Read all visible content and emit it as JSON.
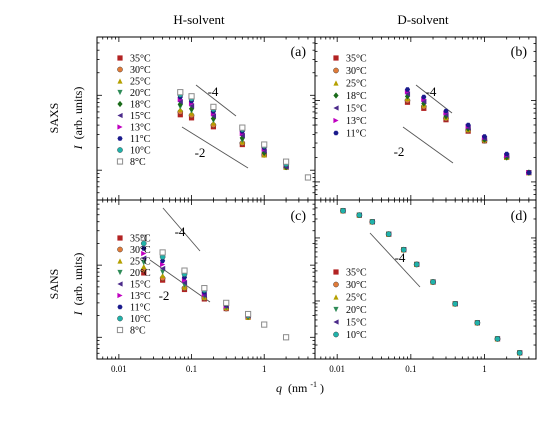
{
  "figure": {
    "col_titles": [
      "H-solvent",
      "D-solvent"
    ],
    "row_labels": [
      "SAXS",
      "SANS"
    ],
    "ylabel_main": "I",
    "ylabel_unit": "(arb. units)",
    "xlabel_main": "q",
    "xlabel_unit": "(nm",
    "xlabel_exp": "-1",
    "xlabel_close": ")"
  },
  "chart_data": [
    {
      "type": "scatter",
      "panel": "(a)",
      "xscale": "log",
      "yscale": "log",
      "xlim": [
        0.005,
        5
      ],
      "x_ticks": [],
      "slope_labels": [
        "-4",
        "-2"
      ],
      "series": [
        {
          "name": "35°C",
          "color": "#b22222",
          "marker": "square",
          "x": [
            0.07,
            0.1,
            0.2,
            0.5,
            1,
            2,
            4
          ],
          "y": [
            0.55,
            0.5,
            0.38,
            0.22,
            0.16,
            0.11,
            0.08
          ]
        },
        {
          "name": "30°C",
          "color": "#e07b39",
          "marker": "circle",
          "x": [
            0.07,
            0.1,
            0.2,
            0.5,
            1,
            2,
            4
          ],
          "y": [
            0.6,
            0.54,
            0.4,
            0.23,
            0.16,
            0.11,
            0.08
          ]
        },
        {
          "name": "25°C",
          "color": "#b5a000",
          "marker": "triangle-up",
          "x": [
            0.07,
            0.1,
            0.2,
            0.5,
            1,
            2,
            4
          ],
          "y": [
            0.65,
            0.58,
            0.43,
            0.24,
            0.16,
            0.11,
            0.08
          ]
        },
        {
          "name": "20°C",
          "color": "#2e8b57",
          "marker": "triangle-down",
          "x": [
            0.07,
            0.1,
            0.2,
            0.5,
            1,
            2,
            4
          ],
          "y": [
            0.7,
            0.62,
            0.46,
            0.25,
            0.17,
            0.11,
            0.08
          ]
        },
        {
          "name": "18°C",
          "color": "#1a6b1a",
          "marker": "diamond",
          "x": [
            0.07,
            0.1,
            0.2,
            0.5,
            1,
            2,
            4
          ],
          "y": [
            0.76,
            0.66,
            0.49,
            0.27,
            0.17,
            0.11,
            0.08
          ]
        },
        {
          "name": "15°C",
          "color": "#4b2a8a",
          "marker": "triangle-left",
          "x": [
            0.07,
            0.1,
            0.2,
            0.5,
            1,
            2,
            4
          ],
          "y": [
            0.82,
            0.72,
            0.53,
            0.29,
            0.18,
            0.11,
            0.08
          ]
        },
        {
          "name": "13°C",
          "color": "#c000c0",
          "marker": "triangle-right",
          "x": [
            0.07,
            0.1,
            0.2,
            0.5,
            1,
            2,
            4
          ],
          "y": [
            0.88,
            0.78,
            0.57,
            0.31,
            0.19,
            0.12,
            0.08
          ]
        },
        {
          "name": "11°C",
          "color": "#1a1a8c",
          "marker": "hexagon",
          "x": [
            0.07,
            0.1,
            0.2,
            0.5,
            1,
            2,
            4
          ],
          "y": [
            0.95,
            0.84,
            0.61,
            0.33,
            0.2,
            0.12,
            0.08
          ]
        },
        {
          "name": "10°C",
          "color": "#20b2aa",
          "marker": "circle",
          "x": [
            0.07,
            0.1,
            0.2,
            0.5,
            1,
            2,
            4
          ],
          "y": [
            1.02,
            0.9,
            0.65,
            0.35,
            0.21,
            0.12,
            0.08
          ]
        },
        {
          "name": "8°C",
          "color": "#8c8c8c",
          "marker": "square-open",
          "x": [
            0.07,
            0.1,
            0.2,
            0.5,
            1,
            2,
            4
          ],
          "y": [
            1.1,
            0.97,
            0.7,
            0.37,
            0.22,
            0.13,
            0.08
          ]
        }
      ]
    },
    {
      "type": "scatter",
      "panel": "(b)",
      "xscale": "log",
      "yscale": "log",
      "xlim": [
        0.005,
        5
      ],
      "x_ticks": [],
      "slope_labels": [
        "-4",
        "-2"
      ],
      "series": [
        {
          "name": "35°C",
          "color": "#b22222",
          "marker": "square",
          "x": [
            0.09,
            0.15,
            0.3,
            0.6,
            1,
            2,
            4
          ],
          "y": [
            0.95,
            0.8,
            0.58,
            0.42,
            0.32,
            0.2,
            0.13
          ]
        },
        {
          "name": "30°C",
          "color": "#e07b39",
          "marker": "circle",
          "x": [
            0.09,
            0.15,
            0.3,
            0.6,
            1,
            2,
            4
          ],
          "y": [
            1.0,
            0.84,
            0.6,
            0.43,
            0.32,
            0.2,
            0.13
          ]
        },
        {
          "name": "25°C",
          "color": "#b5a000",
          "marker": "triangle-up",
          "x": [
            0.09,
            0.15,
            0.3,
            0.6,
            1,
            2,
            4
          ],
          "y": [
            1.06,
            0.88,
            0.62,
            0.44,
            0.33,
            0.2,
            0.13
          ]
        },
        {
          "name": "18°C",
          "color": "#1a6b1a",
          "marker": "diamond",
          "x": [
            0.09,
            0.15,
            0.3,
            0.6,
            1,
            2,
            4
          ],
          "y": [
            1.12,
            0.92,
            0.64,
            0.45,
            0.33,
            0.2,
            0.13
          ]
        },
        {
          "name": "15°C",
          "color": "#4b2a8a",
          "marker": "triangle-left",
          "x": [
            0.09,
            0.15,
            0.3,
            0.6,
            1,
            2,
            4
          ],
          "y": [
            1.2,
            0.97,
            0.67,
            0.46,
            0.34,
            0.21,
            0.13
          ]
        },
        {
          "name": "13°C",
          "color": "#c000c0",
          "marker": "triangle-right",
          "x": [
            0.09,
            0.15,
            0.3,
            0.6,
            1,
            2,
            4
          ],
          "y": [
            1.28,
            1.03,
            0.7,
            0.48,
            0.35,
            0.21,
            0.13
          ]
        },
        {
          "name": "11°C",
          "color": "#1a1a8c",
          "marker": "hexagon",
          "x": [
            0.09,
            0.15,
            0.3,
            0.6,
            1,
            2,
            4
          ],
          "y": [
            1.36,
            1.1,
            0.74,
            0.5,
            0.36,
            0.22,
            0.13
          ]
        }
      ]
    },
    {
      "type": "scatter",
      "panel": "(c)",
      "xscale": "log",
      "yscale": "log",
      "xlim": [
        0.005,
        5
      ],
      "x_ticks": [
        "0.01",
        "0.1",
        "1"
      ],
      "slope_labels": [
        "-4",
        "-2"
      ],
      "series": [
        {
          "name": "35°C",
          "color": "#b22222",
          "marker": "square",
          "x": [
            0.022,
            0.04,
            0.08,
            0.15,
            0.3,
            0.6,
            1,
            2
          ],
          "y": [
            0.78,
            0.62,
            0.46,
            0.34,
            0.25,
            0.19,
            0.15,
            0.1
          ]
        },
        {
          "name": "30°C",
          "color": "#e07b39",
          "marker": "circle",
          "x": [
            0.022,
            0.04,
            0.08,
            0.15,
            0.3,
            0.6,
            1,
            2
          ],
          "y": [
            0.86,
            0.66,
            0.48,
            0.35,
            0.25,
            0.19,
            0.15,
            0.1
          ]
        },
        {
          "name": "25°C",
          "color": "#b5a000",
          "marker": "triangle-up",
          "x": [
            0.022,
            0.04,
            0.08,
            0.15,
            0.3,
            0.6,
            1,
            2
          ],
          "y": [
            0.96,
            0.72,
            0.5,
            0.36,
            0.26,
            0.19,
            0.15,
            0.1
          ]
        },
        {
          "name": "20°C",
          "color": "#2e8b57",
          "marker": "triangle-down",
          "x": [
            0.022,
            0.04,
            0.08,
            0.15,
            0.3,
            0.6,
            1,
            2
          ],
          "y": [
            1.08,
            0.8,
            0.53,
            0.37,
            0.26,
            0.19,
            0.15,
            0.1
          ]
        },
        {
          "name": "15°C",
          "color": "#4b2a8a",
          "marker": "triangle-left",
          "x": [
            0.022,
            0.04,
            0.08,
            0.15,
            0.3,
            0.6,
            1,
            2
          ],
          "y": [
            1.25,
            0.9,
            0.57,
            0.38,
            0.27,
            0.2,
            0.15,
            0.1
          ]
        },
        {
          "name": "13°C",
          "color": "#c000c0",
          "marker": "triangle-right",
          "x": [
            0.022,
            0.04,
            0.08,
            0.15,
            0.3,
            0.6,
            1,
            2
          ],
          "y": [
            1.45,
            1.02,
            0.62,
            0.4,
            0.27,
            0.2,
            0.15,
            0.1
          ]
        },
        {
          "name": "11°C",
          "color": "#1a1a8c",
          "marker": "hexagon",
          "x": [
            0.022,
            0.04,
            0.08,
            0.15,
            0.3,
            0.6,
            1,
            2
          ],
          "y": [
            1.7,
            1.15,
            0.68,
            0.42,
            0.28,
            0.2,
            0.15,
            0.1
          ]
        },
        {
          "name": "10°C",
          "color": "#20b2aa",
          "marker": "circle",
          "x": [
            0.022,
            0.04,
            0.08,
            0.15,
            0.3,
            0.6,
            1,
            2
          ],
          "y": [
            2.0,
            1.3,
            0.75,
            0.45,
            0.29,
            0.2,
            0.15,
            0.1
          ]
        },
        {
          "name": "8°C",
          "color": "#8c8c8c",
          "marker": "square-open",
          "x": [
            0.022,
            0.04,
            0.08,
            0.15,
            0.3,
            0.6,
            1,
            2
          ],
          "y": [
            2.4,
            1.5,
            0.84,
            0.48,
            0.3,
            0.21,
            0.15,
            0.1
          ]
        }
      ]
    },
    {
      "type": "scatter",
      "panel": "(d)",
      "xscale": "log",
      "yscale": "log",
      "xlim": [
        0.005,
        5
      ],
      "x_ticks": [
        "0.01",
        "0.1",
        "1"
      ],
      "slope_labels": [
        "-4"
      ],
      "series": [
        {
          "name": "35°C",
          "color": "#b22222",
          "marker": "square",
          "x": [
            0.012,
            0.02,
            0.03,
            0.05,
            0.08,
            0.12,
            0.2,
            0.4,
            0.8,
            1.5,
            3
          ],
          "y": [
            2.7,
            2.3,
            1.8,
            1.15,
            0.65,
            0.38,
            0.2,
            0.09,
            0.045,
            0.025,
            0.015
          ]
        },
        {
          "name": "30°C",
          "color": "#e07b39",
          "marker": "circle",
          "x": [
            0.012,
            0.02,
            0.03,
            0.05,
            0.08,
            0.12,
            0.2,
            0.4,
            0.8,
            1.5,
            3
          ],
          "y": [
            2.7,
            2.3,
            1.8,
            1.15,
            0.65,
            0.38,
            0.2,
            0.09,
            0.045,
            0.025,
            0.015
          ]
        },
        {
          "name": "25°C",
          "color": "#b5a000",
          "marker": "triangle-up",
          "x": [
            0.012,
            0.02,
            0.03,
            0.05,
            0.08,
            0.12,
            0.2,
            0.4,
            0.8,
            1.5,
            3
          ],
          "y": [
            2.7,
            2.3,
            1.8,
            1.15,
            0.65,
            0.38,
            0.2,
            0.09,
            0.045,
            0.025,
            0.015
          ]
        },
        {
          "name": "20°C",
          "color": "#2e8b57",
          "marker": "triangle-down",
          "x": [
            0.012,
            0.02,
            0.03,
            0.05,
            0.08,
            0.12,
            0.2,
            0.4,
            0.8,
            1.5,
            3
          ],
          "y": [
            2.7,
            2.3,
            1.8,
            1.15,
            0.65,
            0.38,
            0.2,
            0.09,
            0.045,
            0.025,
            0.015
          ]
        },
        {
          "name": "15°C",
          "color": "#4b2a8a",
          "marker": "triangle-left",
          "x": [
            0.012,
            0.02,
            0.03,
            0.05,
            0.08,
            0.12,
            0.2,
            0.4,
            0.8,
            1.5,
            3
          ],
          "y": [
            2.7,
            2.3,
            1.8,
            1.15,
            0.65,
            0.38,
            0.2,
            0.09,
            0.045,
            0.025,
            0.015
          ]
        },
        {
          "name": "10°C",
          "color": "#20b2aa",
          "marker": "circle",
          "x": [
            0.012,
            0.02,
            0.03,
            0.05,
            0.08,
            0.12,
            0.2,
            0.4,
            0.8,
            1.5,
            3
          ],
          "y": [
            2.7,
            2.3,
            1.8,
            1.15,
            0.65,
            0.38,
            0.2,
            0.09,
            0.045,
            0.025,
            0.015
          ]
        }
      ]
    }
  ]
}
